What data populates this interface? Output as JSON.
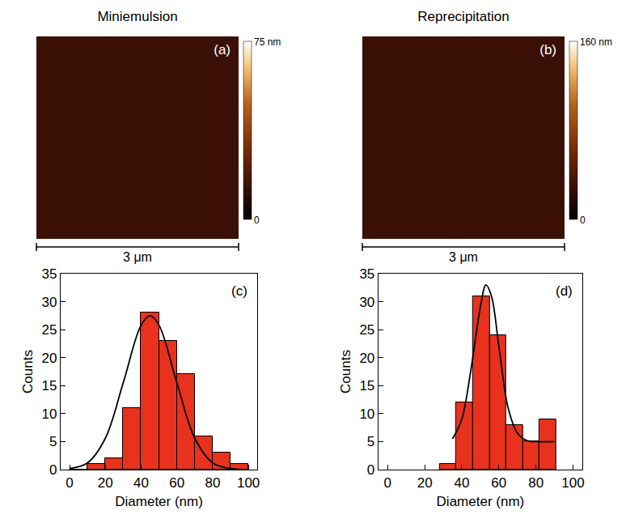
{
  "images": [
    {
      "title": "Miniemulsion",
      "label": "(a)",
      "scale_bar": "3 μm",
      "colorbar": {
        "range": [
          0,
          75
        ],
        "ticks": [
          0,
          {
            "value": 75,
            "label": "75 nm"
          }
        ]
      }
    },
    {
      "title": "Reprecipitation",
      "label": "(b)",
      "scale_bar": "3 μm",
      "colorbar": {
        "range": [
          0,
          160
        ],
        "ticks": [
          0,
          {
            "value": 160,
            "label": "160 nm"
          }
        ]
      }
    }
  ],
  "chart_data": [
    {
      "type": "histogram",
      "label": "(c)",
      "x_label": "Diameter (nm)",
      "y_label": "Counts",
      "bins": [
        0,
        10,
        20,
        30,
        40,
        50,
        60,
        70,
        80,
        90,
        100
      ],
      "counts": [
        0,
        1,
        2,
        11,
        28,
        23,
        17,
        6,
        3,
        1
      ],
      "color": "#e8321e",
      "fit": {
        "x": [
          0,
          10,
          20,
          30,
          40,
          45,
          50,
          60,
          70,
          80,
          90,
          100
        ],
        "y": [
          0.2,
          1.2,
          5.6,
          15.5,
          25.8,
          27.5,
          25.8,
          15.5,
          5.6,
          1.2,
          0.2,
          0
        ],
        "color": "#000000"
      },
      "xlim": [
        -5,
        105
      ],
      "xticks": [
        0,
        20,
        40,
        60,
        80,
        100
      ],
      "ylim": [
        0,
        35
      ],
      "yticks": [
        0,
        5,
        10,
        15,
        20,
        25,
        30,
        35
      ]
    },
    {
      "type": "histogram",
      "label": "(d)",
      "x_label": "Diameter (nm)",
      "y_label": "Counts",
      "bins": [
        28,
        37,
        46,
        55,
        64,
        73,
        82,
        91
      ],
      "counts": [
        1,
        12,
        31,
        24,
        8,
        5,
        9
      ],
      "color": "#e8321e",
      "fit": {
        "x": [
          35,
          40,
          45,
          50,
          53,
          56,
          60,
          65,
          70,
          75,
          80,
          90
        ],
        "y": [
          5.5,
          9,
          18,
          29,
          33,
          31,
          22,
          11,
          6.5,
          5.2,
          5,
          5
        ],
        "color": "#000000"
      },
      "xlim": [
        -5,
        105
      ],
      "xticks": [
        0,
        20,
        40,
        60,
        80,
        100
      ],
      "ylim": [
        0,
        35
      ],
      "yticks": [
        0,
        5,
        10,
        15,
        20,
        25,
        30,
        35
      ]
    }
  ]
}
